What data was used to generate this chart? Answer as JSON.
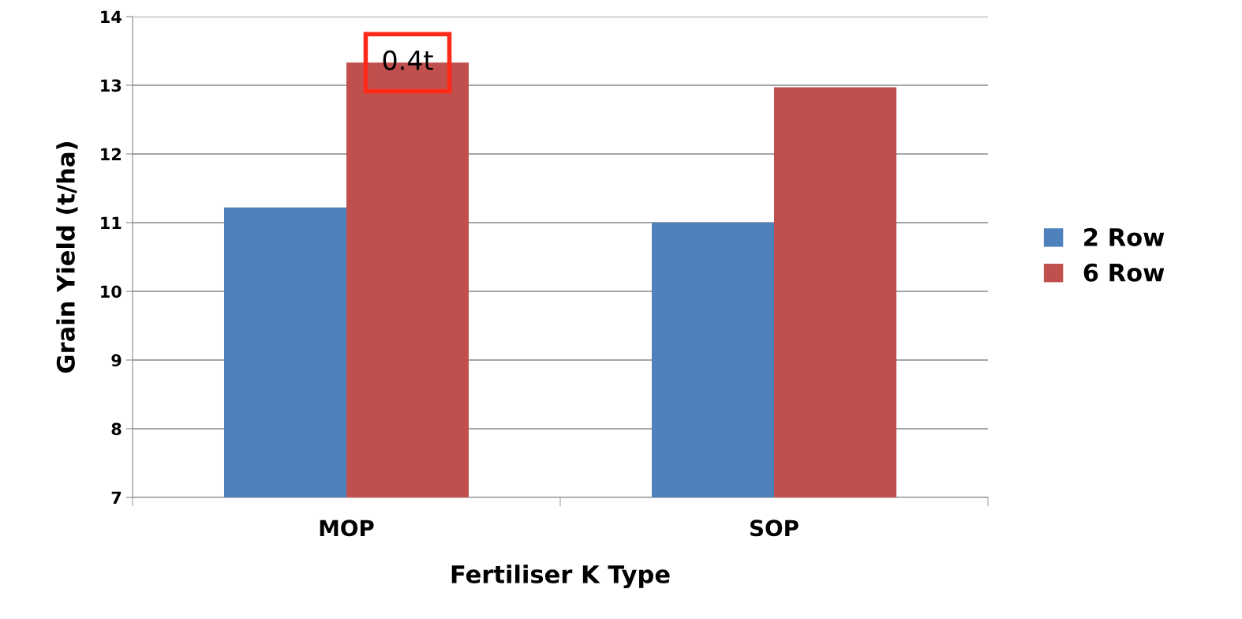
{
  "chart_data": {
    "type": "bar",
    "xlabel": "Fertiliser K Type",
    "ylabel": "Grain Yield (t/ha)",
    "categories": [
      "MOP",
      "SOP"
    ],
    "series": [
      {
        "name": "2 Row",
        "color": "#4f81bd",
        "values": [
          11.22,
          11.0
        ]
      },
      {
        "name": "6 Row",
        "color": "#c0504d",
        "values": [
          13.33,
          12.97
        ]
      }
    ],
    "ylim": [
      7,
      14
    ],
    "yticks": [
      7,
      8,
      9,
      10,
      11,
      12,
      13,
      14
    ],
    "grid": "y",
    "legend": "right",
    "annotations": [
      "0.4t"
    ]
  }
}
